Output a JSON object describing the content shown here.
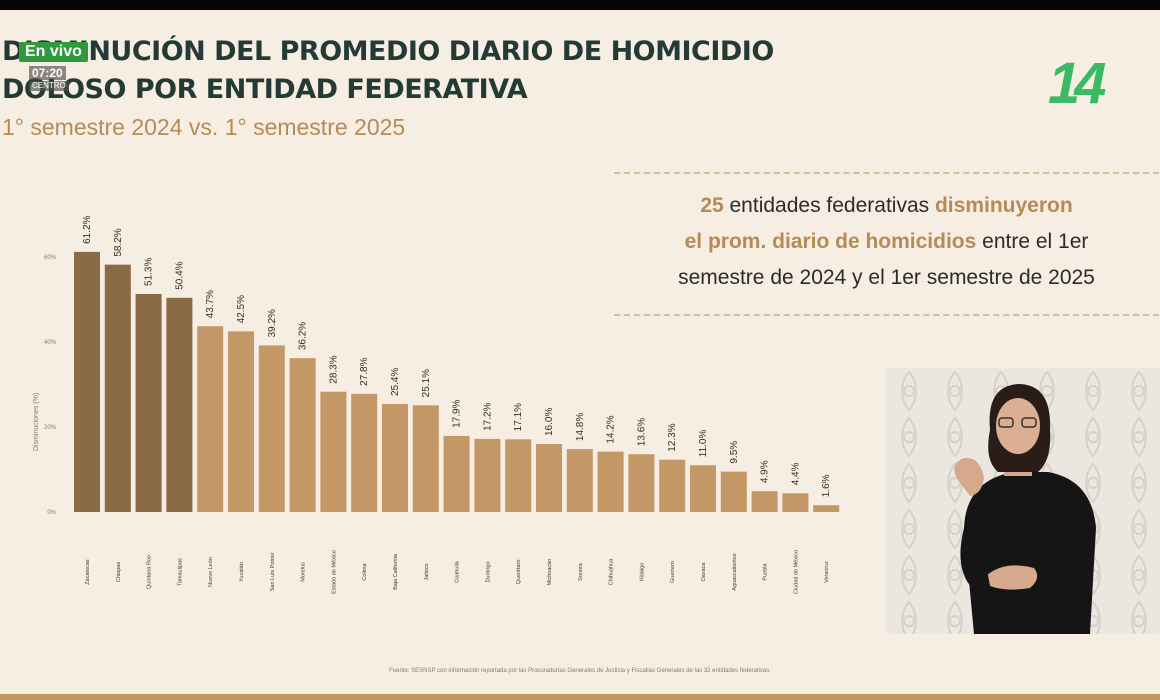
{
  "overlay": {
    "live_label": "En vivo",
    "time_label": "07:20",
    "zone_label": "CENTRO"
  },
  "header": {
    "title_line1": "DISMINUCIÓN DEL PROMEDIO DIARIO DE HOMICIDIO",
    "title_line2": "DOLOSO POR ENTIDAD FEDERATIVA",
    "subtitle": "1° semestre 2024 vs. 1° semestre 2025",
    "brand": "14"
  },
  "callout": {
    "number": "25",
    "part1": " entidades federativas ",
    "highlight1": "disminuyeron",
    "highlight2": "el prom. diario de homicidios",
    "part2": " entre el 1er",
    "line3": "semestre de 2024 y el 1er semestre de 2025"
  },
  "colors": {
    "dark_bar": "#8b6a46",
    "light_bar": "#c49766",
    "title": "#243b35",
    "accent": "#b58b58",
    "brand": "#3cba63"
  },
  "chart_data": {
    "type": "bar",
    "ylabel": "Disminuciones (%)",
    "ylim": [
      0,
      60
    ],
    "yticks": [
      "60%",
      "40%",
      "20%",
      "0%"
    ],
    "grid": false,
    "categories": [
      "Zacatecas",
      "Chiapas",
      "Quintana Roo",
      "Tamaulipas",
      "Nuevo León",
      "Yucatán",
      "San Luis Potosí",
      "Morelos",
      "Estado de México",
      "Colima",
      "Baja California",
      "Jalisco",
      "Coahuila",
      "Durango",
      "Querétaro",
      "Michoacán",
      "Sonora",
      "Chihuahua",
      "Hidalgo",
      "Guerrero",
      "Oaxaca",
      "Aguascalientes",
      "Puebla",
      "Ciudad de México",
      "Veracruz"
    ],
    "values": [
      61.2,
      58.2,
      51.3,
      50.4,
      43.7,
      42.5,
      39.2,
      36.2,
      28.3,
      27.8,
      25.4,
      25.1,
      17.9,
      17.2,
      17.1,
      16.0,
      14.8,
      14.2,
      13.6,
      12.3,
      11.0,
      9.5,
      4.9,
      4.4,
      1.6
    ],
    "labels": [
      "61.2%",
      "58.2%",
      "51.3%",
      "50.4%",
      "43.7%",
      "42.5%",
      "39.2%",
      "36.2%",
      "28.3%",
      "27.8%",
      "25.4%",
      "25.1%",
      "17.9%",
      "17.2%",
      "17.1%",
      "16.0%",
      "14.8%",
      "14.2%",
      "13.6%",
      "12.3%",
      "11.0%",
      "9.5%",
      "4.9%",
      "4.4%",
      "1.6%"
    ],
    "dark_count": 4
  },
  "footer": {
    "source": "Fuente: SESNSP con información reportada por las Procuradurías Generales de Justicia y Fiscalías Generales de las 32 entidades federativas."
  }
}
